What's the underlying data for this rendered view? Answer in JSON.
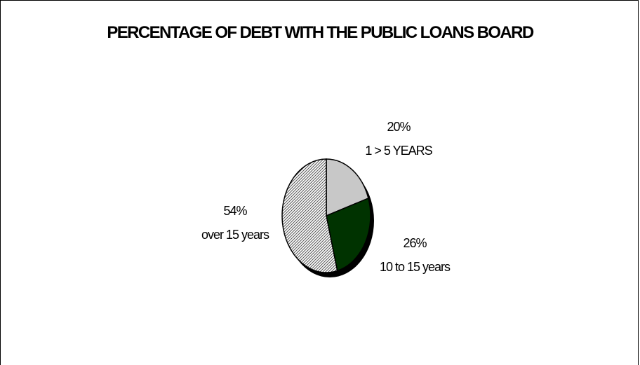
{
  "chart_data": {
    "type": "pie",
    "title": "PERCENTAGE OF DEBT WITH THE PUBLIC LOANS BOARD",
    "slices": [
      {
        "label": "1 > 5 YEARS",
        "value": 20,
        "value_label": "20%",
        "color": "#c8c8c8",
        "pattern": "solid"
      },
      {
        "label": "10 to 15 years",
        "value": 26,
        "value_label": "26%",
        "color": "#003300",
        "pattern": "solid"
      },
      {
        "label": "over 15 years",
        "value": 54,
        "value_label": "54%",
        "color": "#a8a8a8",
        "pattern": "diagonal-hatch"
      }
    ],
    "start_angle_deg": 0,
    "direction": "clockwise",
    "three_d": true,
    "legend": "none"
  }
}
